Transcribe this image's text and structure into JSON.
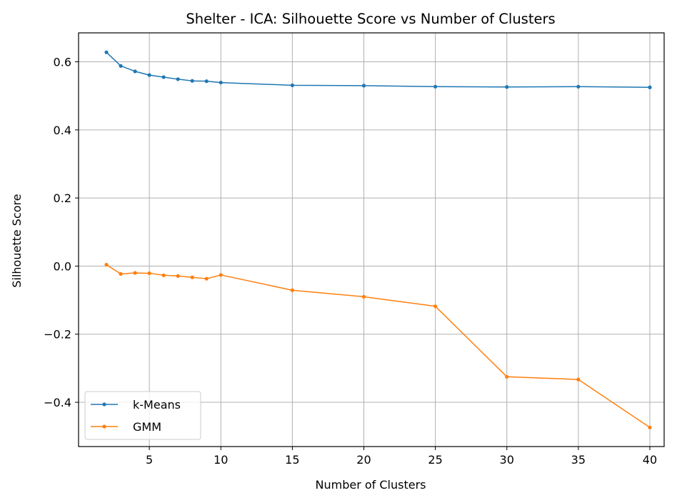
{
  "chart_data": {
    "type": "line",
    "title": "Shelter - ICA: Silhouette Score vs Number of Clusters",
    "xlabel": "Number of Clusters",
    "ylabel": "Silhouette Score",
    "xlim": [
      0.05,
      41.0
    ],
    "ylim": [
      -0.53,
      0.685
    ],
    "xticks": [
      5,
      10,
      15,
      20,
      25,
      30,
      35,
      40
    ],
    "xtick_labels": [
      "5",
      "10",
      "15",
      "20",
      "25",
      "30",
      "35",
      "40"
    ],
    "yticks": [
      -0.4,
      -0.2,
      0.0,
      0.2,
      0.4,
      0.6
    ],
    "ytick_labels": [
      "−0.4",
      "−0.2",
      "0.0",
      "0.2",
      "0.4",
      "0.6"
    ],
    "grid": true,
    "legend_position": "lower-left",
    "x": [
      2,
      3,
      4,
      5,
      6,
      7,
      8,
      9,
      10,
      15,
      20,
      25,
      30,
      35,
      40
    ],
    "series": [
      {
        "name": "k-Means",
        "color": "#1f77b4",
        "values": [
          0.628,
          0.588,
          0.572,
          0.561,
          0.555,
          0.549,
          0.544,
          0.543,
          0.539,
          0.531,
          0.53,
          0.527,
          0.526,
          0.527,
          0.525
        ]
      },
      {
        "name": "GMM",
        "color": "#ff7f0e",
        "values": [
          0.004,
          -0.023,
          -0.02,
          -0.021,
          -0.027,
          -0.029,
          -0.033,
          -0.037,
          -0.026,
          -0.071,
          -0.09,
          -0.118,
          -0.325,
          -0.333,
          -0.474
        ]
      }
    ]
  }
}
